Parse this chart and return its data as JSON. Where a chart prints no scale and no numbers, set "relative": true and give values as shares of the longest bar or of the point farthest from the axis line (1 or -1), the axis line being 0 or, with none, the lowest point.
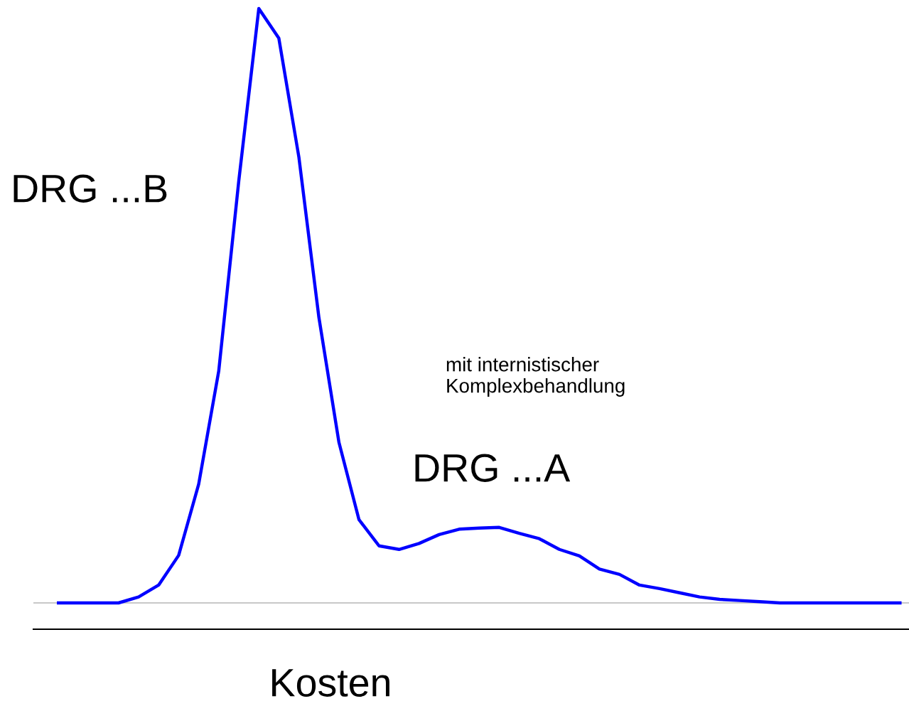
{
  "chart_data": {
    "type": "line",
    "relative": true,
    "xlabel": "Kosten",
    "categories": [
      null,
      null,
      null,
      null,
      null,
      null,
      null,
      null,
      null,
      null,
      null,
      null,
      null,
      null,
      null,
      null,
      null,
      null,
      null,
      null,
      null,
      null,
      null,
      null,
      null,
      null,
      null,
      null,
      null,
      null,
      null,
      null,
      null,
      null,
      null,
      null,
      null,
      null,
      null,
      null,
      null,
      null,
      null
    ],
    "series": [
      {
        "color": "#0000ff",
        "values": [
          0,
          0,
          0,
          0,
          0.01,
          0.03,
          0.08,
          0.2,
          0.39,
          0.71,
          1.0,
          0.95,
          0.75,
          0.48,
          0.27,
          0.14,
          0.096,
          0.09,
          0.1,
          0.115,
          0.124,
          0.126,
          0.127,
          0.117,
          0.108,
          0.09,
          0.079,
          0.057,
          0.048,
          0.03,
          0.024,
          0.017,
          0.01,
          0.006,
          0.004,
          0.002,
          0,
          0,
          0,
          0,
          0,
          0,
          0
        ]
      }
    ],
    "annotations": [
      "DRG ...B",
      "mit internistischer\nKomplexbehandlung",
      "DRG ...A"
    ],
    "ref_lines": [
      {
        "axis": "y",
        "value": 0,
        "color": "#c8c8c8"
      }
    ],
    "legend": false,
    "marker": "none",
    "line_style": "solid"
  }
}
